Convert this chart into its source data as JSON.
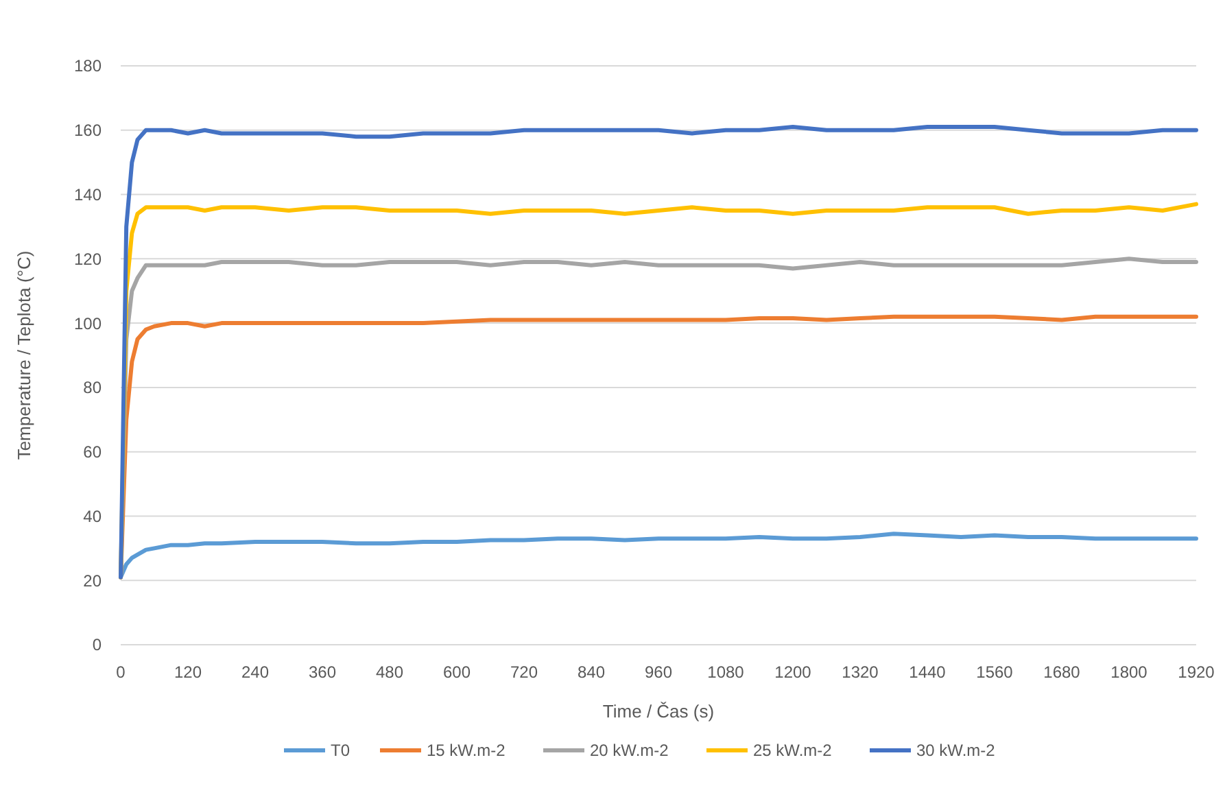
{
  "chart_data": {
    "type": "line",
    "xlabel": "Time / Čas (s)",
    "ylabel": "Temperature / Teplota (°C)",
    "x": [
      0,
      10,
      20,
      30,
      45,
      60,
      90,
      120,
      150,
      180,
      240,
      300,
      360,
      420,
      480,
      540,
      600,
      660,
      720,
      780,
      840,
      900,
      960,
      1020,
      1080,
      1140,
      1200,
      1260,
      1320,
      1380,
      1440,
      1500,
      1560,
      1620,
      1680,
      1740,
      1800,
      1860,
      1920
    ],
    "series": [
      {
        "name": "T0",
        "color": "#5b9bd5",
        "values": [
          21,
          25,
          27,
          28,
          29.5,
          30,
          31,
          31,
          31.5,
          31.5,
          32,
          32,
          32,
          31.5,
          31.5,
          32,
          32,
          32.5,
          32.5,
          33,
          33,
          32.5,
          33,
          33,
          33,
          33.5,
          33,
          33,
          33.5,
          34.5,
          34,
          33.5,
          34,
          33.5,
          33.5,
          33,
          33,
          33,
          33
        ]
      },
      {
        "name": "15 kW.m-2",
        "color": "#ed7d31",
        "values": [
          21,
          70,
          88,
          95,
          98,
          99,
          100,
          100,
          99,
          100,
          100,
          100,
          100,
          100,
          100,
          100,
          100.5,
          101,
          101,
          101,
          101,
          101,
          101,
          101,
          101,
          101.5,
          101.5,
          101,
          101.5,
          102,
          102,
          102,
          102,
          101.5,
          101,
          102,
          102,
          102,
          102
        ]
      },
      {
        "name": "20 kW.m-2",
        "color": "#a5a5a5",
        "values": [
          21,
          95,
          110,
          114,
          118,
          118,
          118,
          118,
          118,
          119,
          119,
          119,
          118,
          118,
          119,
          119,
          119,
          118,
          119,
          119,
          118,
          119,
          118,
          118,
          118,
          118,
          117,
          118,
          119,
          118,
          118,
          118,
          118,
          118,
          118,
          119,
          120,
          119,
          119
        ]
      },
      {
        "name": "25 kW.m-2",
        "color": "#ffc000",
        "values": [
          21,
          110,
          128,
          134,
          136,
          136,
          136,
          136,
          135,
          136,
          136,
          135,
          136,
          136,
          135,
          135,
          135,
          134,
          135,
          135,
          135,
          134,
          135,
          136,
          135,
          135,
          134,
          135,
          135,
          135,
          136,
          136,
          136,
          134,
          135,
          135,
          136,
          135,
          137
        ]
      },
      {
        "name": "30 kW.m-2",
        "color": "#4472c4",
        "values": [
          21,
          130,
          150,
          157,
          160,
          160,
          160,
          159,
          160,
          159,
          159,
          159,
          159,
          158,
          158,
          159,
          159,
          159,
          160,
          160,
          160,
          160,
          160,
          159,
          160,
          160,
          161,
          160,
          160,
          160,
          161,
          161,
          161,
          160,
          159,
          159,
          159,
          160,
          160
        ]
      }
    ],
    "xlim": [
      0,
      1920
    ],
    "xticks": [
      0,
      120,
      240,
      360,
      480,
      600,
      720,
      840,
      960,
      1080,
      1200,
      1320,
      1440,
      1560,
      1680,
      1800,
      1920
    ],
    "ylim": [
      0,
      180
    ],
    "yticks": [
      0,
      20,
      40,
      60,
      80,
      100,
      120,
      140,
      160,
      180
    ],
    "grid": "y",
    "legend": "bottom",
    "marker": "none",
    "line_style": "solid"
  }
}
